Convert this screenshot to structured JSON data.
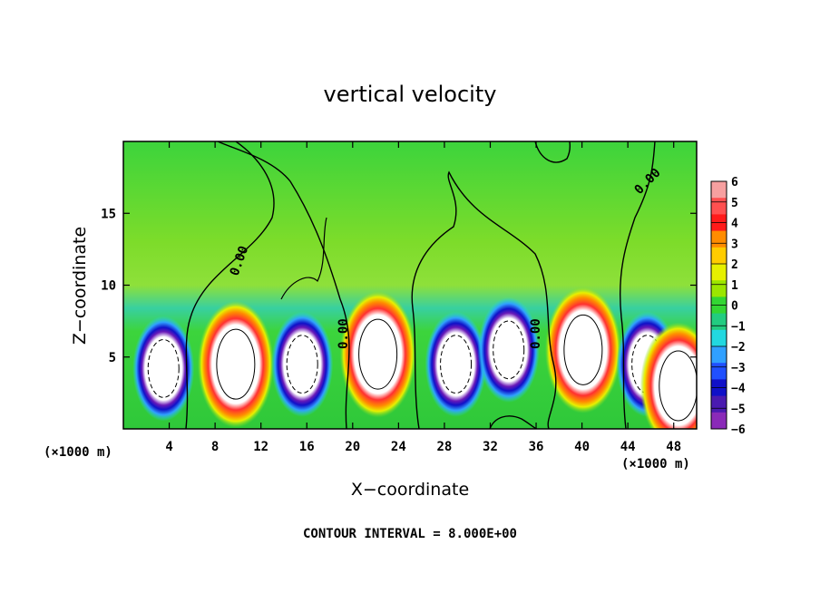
{
  "chart_data": {
    "type": "heatmap",
    "title": "vertical velocity",
    "xlabel": "X−coordinate",
    "ylabel": "Z−coordinate",
    "x_unit_label": "(×1000 m)",
    "xlim": [
      0,
      50
    ],
    "ylim": [
      0,
      20
    ],
    "x_ticks": [
      4,
      8,
      12,
      16,
      20,
      24,
      28,
      32,
      36,
      40,
      44,
      48
    ],
    "y_ticks": [
      5,
      10,
      15
    ],
    "colorbar": {
      "ticks": [
        "6",
        "5",
        "4",
        "3",
        "2",
        "1",
        "0",
        "−1",
        "−2",
        "−3",
        "−4",
        "−5",
        "−6"
      ],
      "colors": [
        "#f7a0a0",
        "#ff5050",
        "#ff1a1a",
        "#ff8c00",
        "#ffcc00",
        "#e6f000",
        "#9be600",
        "#33d633",
        "#22cc80",
        "#22d8e0",
        "#30a0ff",
        "#2050ff",
        "#1010c8",
        "#4a1ab0",
        "#8a2ab8"
      ]
    },
    "contour_label": "0.00",
    "cells": [
      {
        "x": 3.5,
        "z": 4.2,
        "sign": -1
      },
      {
        "x": 9.8,
        "z": 4.5,
        "sign": 1
      },
      {
        "x": 15.6,
        "z": 4.5,
        "sign": -1
      },
      {
        "x": 22.2,
        "z": 5.2,
        "sign": 1
      },
      {
        "x": 29.0,
        "z": 4.5,
        "sign": -1
      },
      {
        "x": 33.6,
        "z": 5.5,
        "sign": -1
      },
      {
        "x": 40.1,
        "z": 5.5,
        "sign": 1
      },
      {
        "x": 45.7,
        "z": 4.5,
        "sign": -1
      },
      {
        "x": 48.4,
        "z": 3.0,
        "sign": 1
      }
    ],
    "footnote": "CONTOUR INTERVAL = 8.000E+00"
  }
}
